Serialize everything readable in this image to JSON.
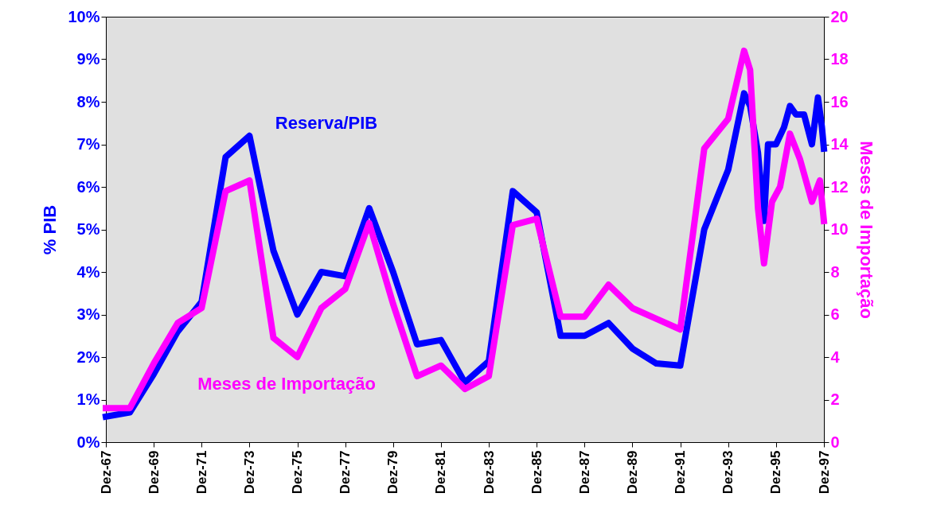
{
  "chart_data": {
    "type": "line",
    "ylabel": "% PIB",
    "y2label": "Meses de Importação",
    "xlim": [
      "1967-12",
      "1997-12"
    ],
    "ylim": [
      0,
      10
    ],
    "y2lim": [
      0,
      20
    ],
    "xticks": [
      {
        "value": "1967-12",
        "label": "Dez-67"
      },
      {
        "value": "1969-12",
        "label": "Dez-69"
      },
      {
        "value": "1971-12",
        "label": "Dez-71"
      },
      {
        "value": "1973-12",
        "label": "Dez-73"
      },
      {
        "value": "1975-12",
        "label": "Dez-75"
      },
      {
        "value": "1977-12",
        "label": "Dez-77"
      },
      {
        "value": "1979-12",
        "label": "Dez-79"
      },
      {
        "value": "1981-12",
        "label": "Dez-81"
      },
      {
        "value": "1983-12",
        "label": "Dez-83"
      },
      {
        "value": "1985-12",
        "label": "Dez-85"
      },
      {
        "value": "1987-12",
        "label": "Dez-87"
      },
      {
        "value": "1989-12",
        "label": "Dez-89"
      },
      {
        "value": "1991-12",
        "label": "Dez-91"
      },
      {
        "value": "1993-12",
        "label": "Dez-93"
      },
      {
        "value": "1995-12",
        "label": "Dez-95"
      },
      {
        "value": "1997-12",
        "label": "Dez-97"
      }
    ],
    "yticks": [
      {
        "value": 0,
        "label": "0%"
      },
      {
        "value": 1,
        "label": "1%"
      },
      {
        "value": 2,
        "label": "2%"
      },
      {
        "value": 3,
        "label": "3%"
      },
      {
        "value": 4,
        "label": "4%"
      },
      {
        "value": 5,
        "label": "5%"
      },
      {
        "value": 6,
        "label": "6%"
      },
      {
        "value": 7,
        "label": "7%"
      },
      {
        "value": 8,
        "label": "8%"
      },
      {
        "value": 9,
        "label": "9%"
      },
      {
        "value": 10,
        "label": "10%"
      }
    ],
    "y2ticks": [
      0,
      2,
      4,
      6,
      8,
      10,
      12,
      14,
      16,
      18,
      20
    ],
    "grid": false,
    "legend": false,
    "marker": "none",
    "line_style": "solid",
    "series": [
      {
        "name": "Reserva/PIB",
        "color": "#0000ff",
        "x": [
          "1967-12",
          "1968-12",
          "1969-12",
          "1970-12",
          "1971-12",
          "1972-12",
          "1973-12",
          "1974-12",
          "1975-12",
          "1976-12",
          "1977-12",
          "1978-12",
          "1979-12",
          "1980-12",
          "1981-12",
          "1982-12",
          "1983-12",
          "1984-12",
          "1985-12",
          "1986-12",
          "1987-12",
          "1988-12",
          "1989-12",
          "1990-12",
          "1991-12",
          "1992-12",
          "1993-12",
          "1994-04",
          "1994-08",
          "1994-11",
          "1995-03",
          "1995-06",
          "1995-08",
          "1995-12",
          "1996-04",
          "1996-07",
          "1996-10",
          "1997-02",
          "1997-06",
          "1997-09",
          "1997-11",
          "1997-12"
        ],
        "values": [
          0.6,
          0.7,
          1.6,
          2.6,
          3.3,
          6.7,
          7.2,
          4.5,
          3.0,
          4.0,
          3.9,
          5.5,
          4.0,
          2.3,
          2.4,
          1.4,
          1.9,
          5.9,
          5.4,
          2.5,
          2.5,
          2.8,
          2.2,
          1.85,
          1.8,
          5.0,
          6.4,
          7.3,
          8.2,
          7.9,
          6.8,
          5.2,
          7.0,
          7.0,
          7.4,
          7.9,
          7.7,
          7.7,
          7.0,
          8.1,
          7.4,
          6.9
        ]
      },
      {
        "name": "Meses de Importação",
        "color": "#ff00ff",
        "axis": "y2",
        "x": [
          "1967-12",
          "1968-12",
          "1969-12",
          "1970-12",
          "1971-12",
          "1972-12",
          "1973-12",
          "1974-12",
          "1975-12",
          "1976-12",
          "1977-12",
          "1978-12",
          "1979-12",
          "1980-12",
          "1981-12",
          "1982-12",
          "1983-12",
          "1984-12",
          "1985-12",
          "1986-12",
          "1987-12",
          "1988-12",
          "1989-12",
          "1990-12",
          "1991-12",
          "1992-12",
          "1993-12",
          "1994-08",
          "1994-11",
          "1995-03",
          "1995-06",
          "1995-10",
          "1996-02",
          "1996-07",
          "1996-12",
          "1997-06",
          "1997-10",
          "1997-12"
        ],
        "values": [
          1.6,
          1.6,
          3.7,
          5.6,
          6.3,
          11.8,
          12.3,
          4.9,
          4.0,
          6.3,
          7.2,
          10.3,
          6.5,
          3.1,
          3.6,
          2.5,
          3.1,
          10.2,
          10.5,
          5.9,
          5.9,
          7.4,
          6.3,
          5.8,
          5.3,
          13.8,
          15.2,
          18.4,
          17.5,
          11.0,
          8.4,
          11.3,
          12.0,
          14.5,
          13.3,
          11.3,
          12.3,
          10.4
        ]
      }
    ]
  }
}
